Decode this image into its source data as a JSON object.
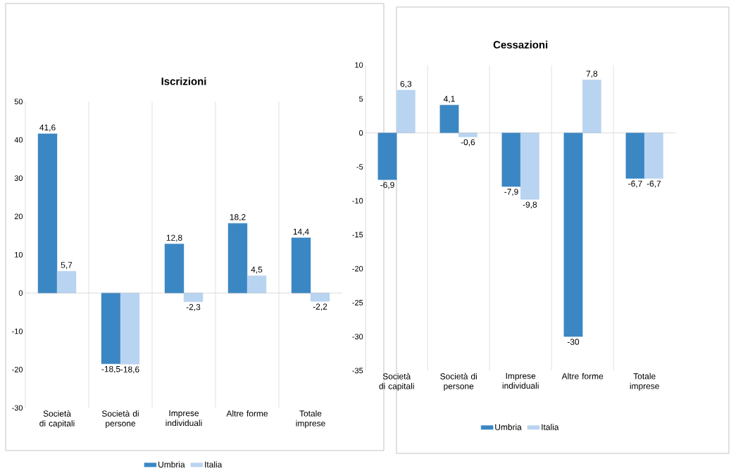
{
  "chart_data": [
    {
      "type": "bar",
      "title": "Iscrizioni",
      "categories": [
        "Società di capitali",
        "Società di persone",
        "Imprese individuali",
        "Altre forme",
        "Totale imprese"
      ],
      "series": [
        {
          "name": "Umbria",
          "color": "#3b87c4",
          "values": [
            41.6,
            -18.5,
            12.8,
            18.2,
            14.4
          ],
          "value_labels": [
            "41,6",
            "-18,5",
            "12,8",
            "18,2",
            "14,4"
          ]
        },
        {
          "name": "Italia",
          "color": "#b9d4f1",
          "values": [
            5.7,
            -18.6,
            -2.3,
            4.5,
            -2.2
          ],
          "value_labels": [
            "5,7",
            "-18,6",
            "-2,3",
            "4,5",
            "-2,2"
          ]
        }
      ],
      "ylim": [
        -30,
        50
      ],
      "yticks": [
        -30,
        -20,
        -10,
        0,
        10,
        20,
        30,
        40,
        50
      ],
      "grid": "x",
      "legend": "bottom"
    },
    {
      "type": "bar",
      "title": "Cessazioni",
      "categories": [
        "Società di capitali",
        "Società di persone",
        "Imprese individuali",
        "Altre forme",
        "Totale imprese"
      ],
      "series": [
        {
          "name": "Umbria",
          "color": "#3b87c4",
          "values": [
            -6.9,
            4.1,
            -7.9,
            -30,
            -6.7
          ],
          "value_labels": [
            "-6,9",
            "4,1",
            "-7,9",
            "-30",
            "-6,7"
          ]
        },
        {
          "name": "Italia",
          "color": "#b9d4f1",
          "values": [
            6.3,
            -0.6,
            -9.8,
            7.8,
            -6.7
          ],
          "value_labels": [
            "6,3",
            "-0,6",
            "-9,8",
            "7,8",
            "-6,7"
          ]
        }
      ],
      "ylim": [
        -35,
        10
      ],
      "yticks": [
        -35,
        -30,
        -25,
        -20,
        -15,
        -10,
        -5,
        0,
        5,
        10
      ],
      "grid": "x",
      "legend": "bottom"
    }
  ]
}
